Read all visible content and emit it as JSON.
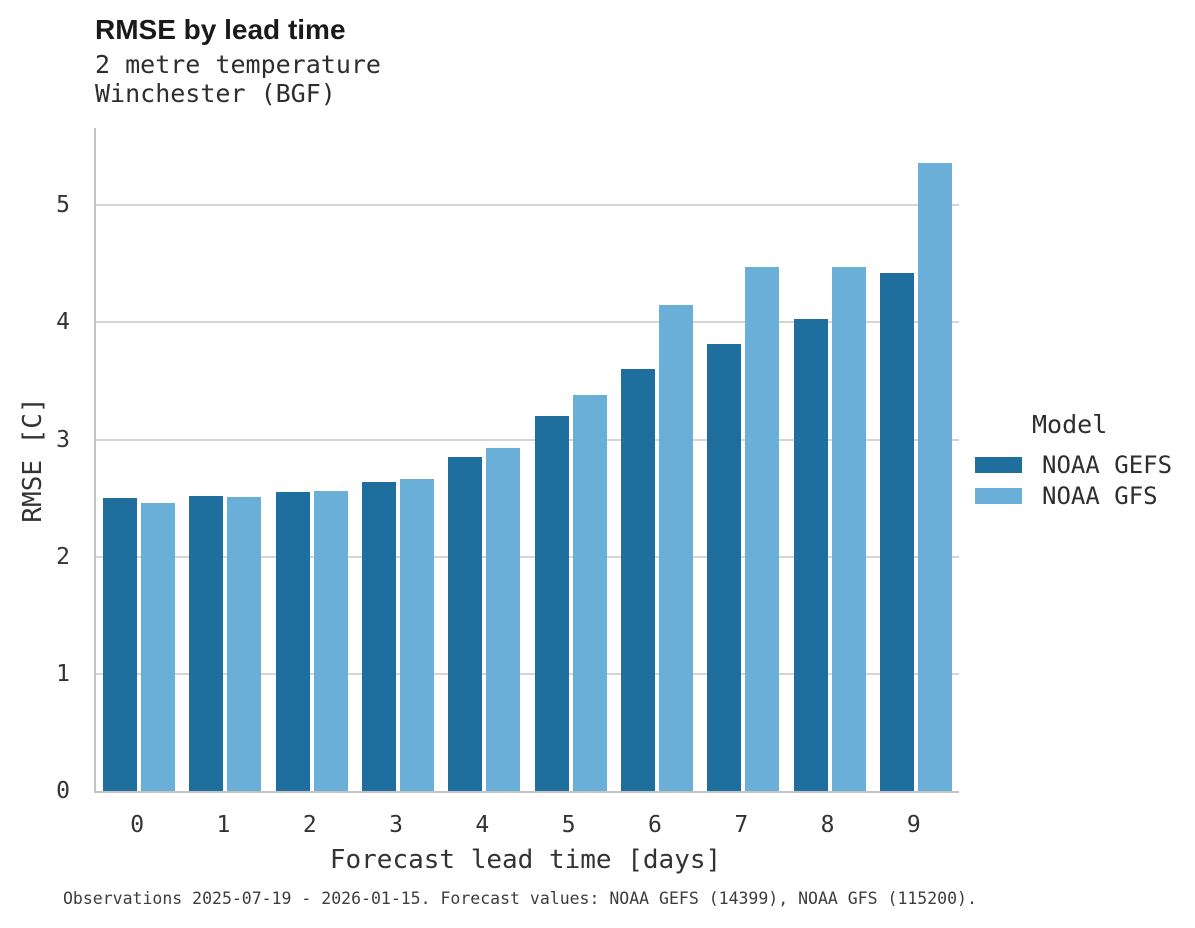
{
  "header": {
    "title": "RMSE by lead time",
    "subtitle_line1": "2 metre temperature",
    "subtitle_line2": "Winchester (BGF)"
  },
  "legend": {
    "title": "Model"
  },
  "footer": {
    "text": "Observations 2025-07-19 - 2026-01-15. Forecast values: NOAA GEFS (14399), NOAA GFS (115200)."
  },
  "chart_data": {
    "type": "bar",
    "title": "RMSE by lead time",
    "subtitle_lines": [
      "2 metre temperature",
      "Winchester (BGF)"
    ],
    "categories": [
      "0",
      "1",
      "2",
      "3",
      "4",
      "5",
      "6",
      "7",
      "8",
      "9"
    ],
    "series": [
      {
        "name": "NOAA GEFS",
        "color": "#1e6e9e",
        "values": [
          2.5,
          2.52,
          2.55,
          2.64,
          2.85,
          3.2,
          3.6,
          3.82,
          4.03,
          4.42
        ]
      },
      {
        "name": "NOAA GFS",
        "color": "#69afd8",
        "values": [
          2.46,
          2.51,
          2.56,
          2.66,
          2.93,
          3.38,
          4.15,
          4.47,
          4.47,
          5.36
        ]
      }
    ],
    "xlabel": "Forecast lead time [days]",
    "ylabel": "RMSE [C]",
    "ylim": [
      0,
      5.66
    ],
    "yticks": [
      0,
      1,
      2,
      3,
      4,
      5
    ],
    "grid": true,
    "legend_position": "right-center",
    "grid_color": "#d5d5d5",
    "axis_color": "#c3c3c3"
  }
}
